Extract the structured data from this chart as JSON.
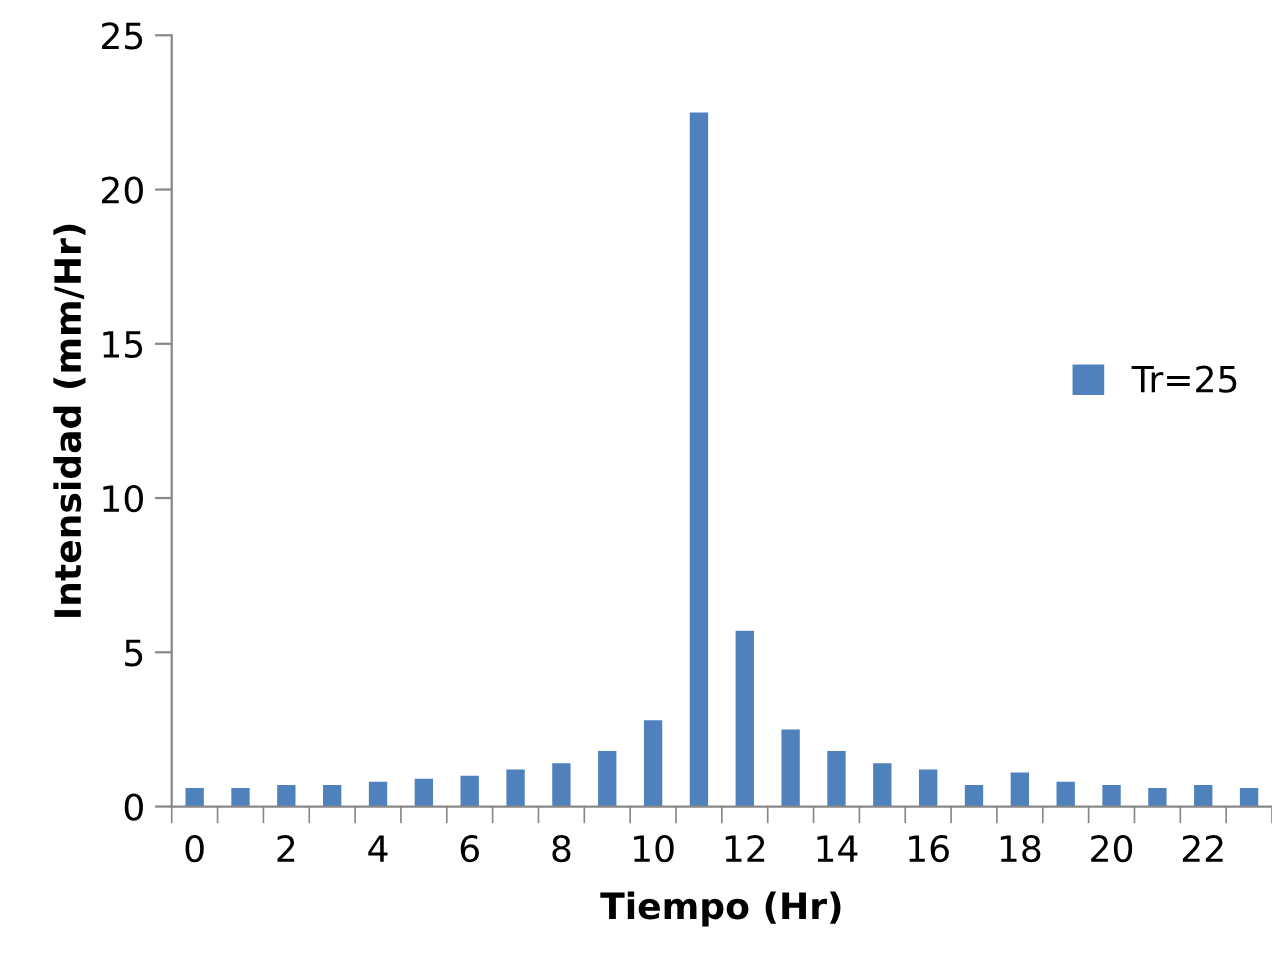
{
  "chart_data": {
    "type": "bar",
    "xlabel": "Tiempo (Hr)",
    "ylabel": "Intensidad (mm/Hr)",
    "categories": [
      "0",
      null,
      "2",
      null,
      "4",
      null,
      "6",
      null,
      "8",
      null,
      "10",
      null,
      "12",
      null,
      "14",
      null,
      "16",
      null,
      "18",
      null,
      "20",
      null,
      "22",
      null
    ],
    "series": [
      {
        "name": "Tr=25",
        "color": "#4f81bd",
        "values": [
          0.6,
          0.6,
          0.7,
          0.7,
          0.8,
          0.9,
          1.0,
          1.2,
          1.4,
          1.8,
          2.8,
          22.5,
          5.7,
          2.5,
          1.8,
          1.4,
          1.2,
          0.7,
          1.1,
          0.8,
          0.7,
          0.6,
          0.7,
          0.6
        ]
      }
    ],
    "ylim": [
      0,
      25
    ],
    "yticks": [
      0,
      5,
      10,
      15,
      20,
      25
    ],
    "grid": false,
    "legend": "right"
  }
}
